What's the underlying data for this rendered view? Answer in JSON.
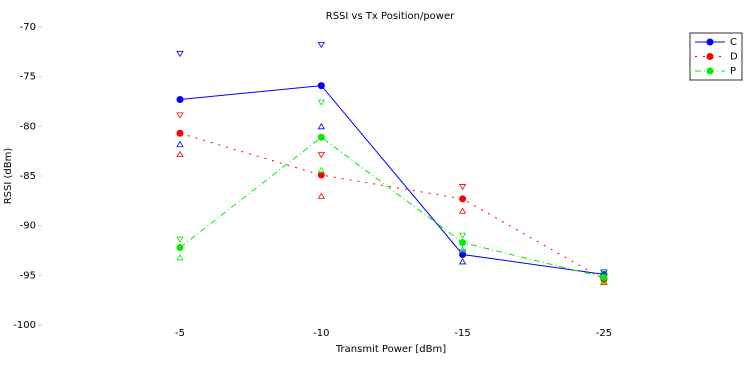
{
  "chart_data": {
    "type": "line",
    "title": "RSSI vs Tx Position/power",
    "x_label": "Transmit Power [dBm]",
    "y_label": "RSSI (dBm)",
    "categories": [
      "-5",
      "-10",
      "-15",
      "-25"
    ],
    "series": [
      {
        "name": "C",
        "color": "#0000ff",
        "dash": "",
        "values": [
          -77.3,
          -75.9,
          -92.9,
          -94.9
        ],
        "upper": [
          -72.7,
          -71.8,
          -92.7,
          -94.7
        ],
        "lower": [
          -81.8,
          -80.0,
          -93.6,
          -95.0
        ]
      },
      {
        "name": "D",
        "color": "#ff0000",
        "dash": "2 6",
        "values": [
          -80.7,
          -84.9,
          -87.3,
          -95.4
        ],
        "upper": [
          -78.9,
          -82.9,
          -86.1,
          -95.3
        ],
        "lower": [
          -82.8,
          -87.0,
          -88.5,
          -95.7
        ]
      },
      {
        "name": "P",
        "color": "#00ee00",
        "dash": "6 3 1 3",
        "values": [
          -92.2,
          -81.1,
          -91.7,
          -95.2
        ],
        "upper": [
          -91.4,
          -77.6,
          -91.0,
          -94.9
        ],
        "lower": [
          -93.2,
          -84.4,
          -92.4,
          -95.6
        ]
      }
    ],
    "ylim": [
      -100,
      -70
    ],
    "yticks": [
      -100,
      -95,
      -90,
      -85,
      -80,
      -75,
      -70
    ],
    "legend": "upper-right"
  }
}
